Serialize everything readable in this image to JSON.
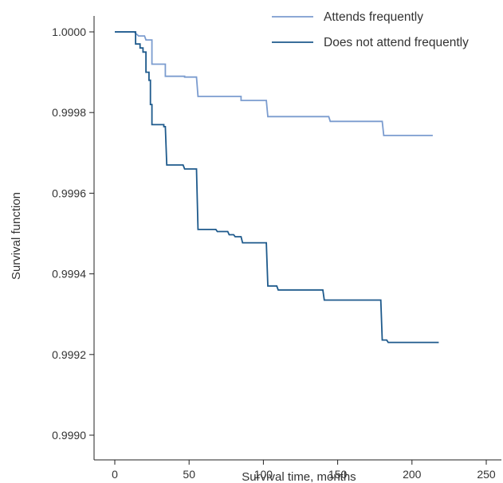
{
  "chart_data": {
    "type": "line",
    "step": true,
    "title": "",
    "xlabel": "Survival time, months",
    "ylabel": "Survival function",
    "xlim": [
      0,
      250
    ],
    "ylim": [
      0.999,
      1.0
    ],
    "xticks": [
      "0",
      "50",
      "100",
      "150",
      "200",
      "250"
    ],
    "yticks": [
      "0.9990",
      "0.9992",
      "0.9994",
      "0.9996",
      "0.9998",
      "1.0000"
    ],
    "grid": false,
    "legend_position": "top-right",
    "series": [
      {
        "name": "Attends frequently",
        "color": "#7b9ccf",
        "points": [
          [
            0,
            1.0
          ],
          [
            13,
            1.0
          ],
          [
            16,
            0.99999
          ],
          [
            20,
            0.99999
          ],
          [
            21,
            0.99998
          ],
          [
            25,
            0.99998
          ],
          [
            25,
            0.99992
          ],
          [
            34,
            0.99992
          ],
          [
            34,
            0.99989
          ],
          [
            47,
            0.99989
          ],
          [
            47,
            0.999888
          ],
          [
            55,
            0.999888
          ],
          [
            56,
            0.99984
          ],
          [
            85,
            0.99984
          ],
          [
            85,
            0.99983
          ],
          [
            102,
            0.99983
          ],
          [
            103,
            0.99979
          ],
          [
            144,
            0.99979
          ],
          [
            145,
            0.999778
          ],
          [
            180,
            0.999778
          ],
          [
            181,
            0.999743
          ],
          [
            214,
            0.999743
          ]
        ]
      },
      {
        "name": "Does not attend frequently",
        "color": "#1e5a8c",
        "points": [
          [
            0,
            1.0
          ],
          [
            14,
            1.0
          ],
          [
            14,
            0.99997
          ],
          [
            17,
            0.99997
          ],
          [
            17,
            0.99996
          ],
          [
            19,
            0.99996
          ],
          [
            19,
            0.99995
          ],
          [
            21,
            0.99995
          ],
          [
            21,
            0.9999
          ],
          [
            23,
            0.9999
          ],
          [
            23,
            0.99988
          ],
          [
            24,
            0.99988
          ],
          [
            24,
            0.99982
          ],
          [
            25,
            0.99982
          ],
          [
            25,
            0.99977
          ],
          [
            33,
            0.99977
          ],
          [
            33,
            0.999765
          ],
          [
            34,
            0.999765
          ],
          [
            35,
            0.99967
          ],
          [
            46,
            0.99967
          ],
          [
            47,
            0.99966
          ],
          [
            55,
            0.99966
          ],
          [
            56,
            0.99951
          ],
          [
            68,
            0.99951
          ],
          [
            69,
            0.999505
          ],
          [
            76,
            0.999505
          ],
          [
            77,
            0.999497
          ],
          [
            80,
            0.999497
          ],
          [
            81,
            0.999492
          ],
          [
            85,
            0.999492
          ],
          [
            86,
            0.999477
          ],
          [
            102,
            0.999477
          ],
          [
            103,
            0.99937
          ],
          [
            109,
            0.99937
          ],
          [
            110,
            0.99936
          ],
          [
            140,
            0.99936
          ],
          [
            141,
            0.999335
          ],
          [
            179,
            0.999335
          ],
          [
            180,
            0.999236
          ],
          [
            183,
            0.999236
          ],
          [
            184,
            0.99923
          ],
          [
            218,
            0.99923
          ]
        ]
      }
    ]
  }
}
